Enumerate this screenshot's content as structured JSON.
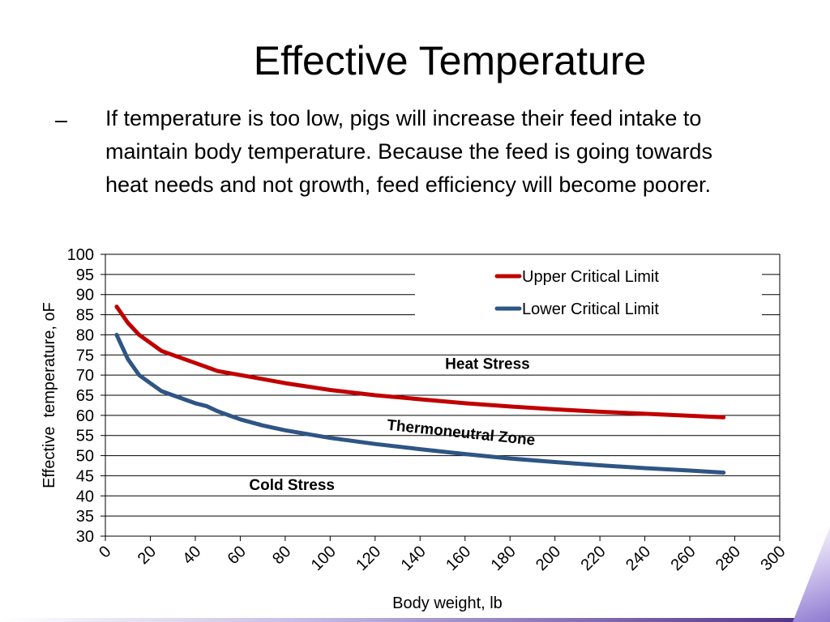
{
  "slide": {
    "title": "Effective Temperature",
    "bullet_marker": "–",
    "bullet_lines": [
      "If temperature is too low, pigs will increase their feed intake to",
      "maintain body temperature. Because the feed is going towards",
      "heat needs and not growth, feed efficiency will become poorer."
    ]
  },
  "colors": {
    "upper": "#c00000",
    "lower": "#2e5584",
    "grid": "#000000",
    "footer_accent": "#4b2a86"
  },
  "chart_data": {
    "type": "line",
    "title": "",
    "xlabel": "Body weight, lb",
    "ylabel": "Effective  temperature, oF",
    "xlim": [
      0,
      300
    ],
    "ylim": [
      30,
      100
    ],
    "x_ticks": [
      "0",
      "20",
      "40",
      "60",
      "80",
      "100",
      "120",
      "140",
      "160",
      "180",
      "200",
      "220",
      "240",
      "260",
      "280",
      "300"
    ],
    "y_ticks": [
      "100",
      "95",
      "90",
      "85",
      "80",
      "75",
      "70",
      "65",
      "60",
      "55",
      "50",
      "45",
      "40",
      "35",
      "30"
    ],
    "grid": "horizontal",
    "legend_position": "top-right",
    "series": [
      {
        "name": "Upper Critical Limit",
        "color": "#c00000",
        "x": [
          5,
          10,
          15,
          20,
          25,
          30,
          40,
          50,
          60,
          70,
          80,
          100,
          120,
          140,
          160,
          180,
          200,
          220,
          240,
          260,
          275
        ],
        "y": [
          87,
          83,
          80,
          78,
          76,
          75,
          73,
          71,
          70,
          69,
          68,
          66.3,
          65,
          64,
          63,
          62.2,
          61.5,
          60.9,
          60.4,
          59.9,
          59.5
        ]
      },
      {
        "name": "Lower Critical Limit",
        "color": "#2e5584",
        "x": [
          5,
          10,
          15,
          20,
          25,
          30,
          40,
          45,
          50,
          60,
          70,
          80,
          100,
          120,
          140,
          160,
          180,
          200,
          220,
          240,
          260,
          275
        ],
        "y": [
          80,
          74,
          70,
          68,
          66,
          65,
          63,
          62.3,
          61,
          59,
          57.5,
          56.3,
          54.4,
          52.9,
          51.6,
          50.4,
          49.3,
          48.4,
          47.6,
          46.9,
          46.3,
          45.8
        ]
      }
    ],
    "annotations": [
      {
        "text": "Heat Stress",
        "x": 170,
        "y": 71.5,
        "rotate": 0
      },
      {
        "text": "Thermoneutral Zone",
        "x": 158,
        "y": 54.5,
        "rotate": 6
      },
      {
        "text": "Cold Stress",
        "x": 83,
        "y": 41.5,
        "rotate": 0
      }
    ]
  }
}
